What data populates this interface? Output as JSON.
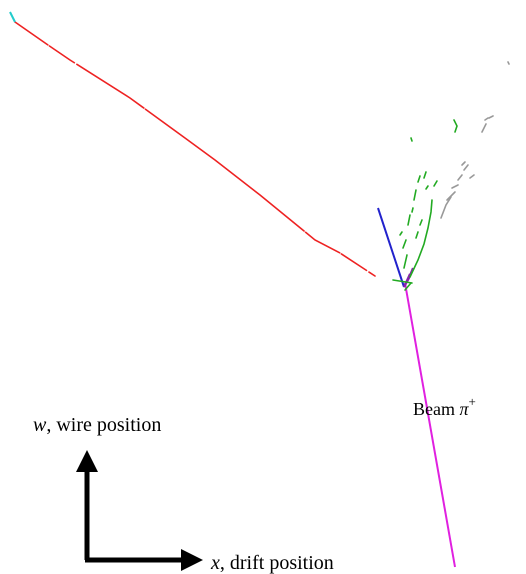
{
  "annotations": {
    "beam_label": "Beam",
    "beam_particle": "π",
    "beam_particle_sup": "+",
    "w_axis_symbol": "w",
    "w_axis_text": ", wire position",
    "x_axis_symbol": "x",
    "x_axis_text": ", drift position"
  },
  "colors": {
    "background": "#ffffff",
    "beam_track": "#e020e0",
    "long_track": "#ee2222",
    "short_track": "#2222cc",
    "shower": "#22aa22",
    "unclustered_hits": "#999999",
    "track_start": "#22cccc",
    "vertex_cluster": "#8822aa",
    "axes": "#000000"
  }
}
